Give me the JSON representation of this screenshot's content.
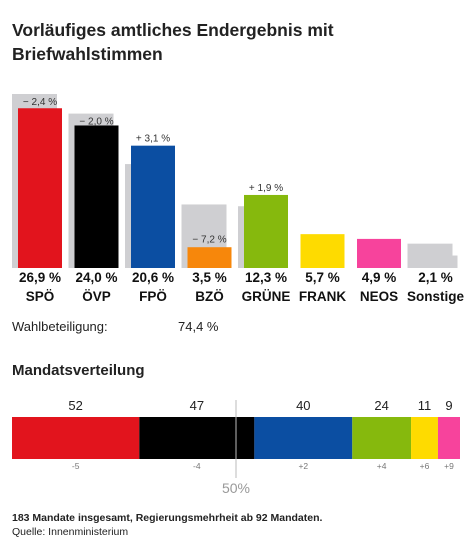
{
  "title": "Vorläufiges amtliches Endergebnis mit Briefwahlstimmen",
  "turnout": {
    "label": "Wahlbeteiligung:",
    "value": "74,4 %"
  },
  "seats_title": "Mandatsverteilung",
  "half_label": "50%",
  "footnote": "183 Mandate insgesamt, Regierungsmehrheit ab 92 Mandaten.",
  "source": "Quelle: Innenministerium",
  "chart_data": [
    {
      "type": "bar",
      "categories": [
        "SPÖ",
        "ÖVP",
        "FPÖ",
        "BZÖ",
        "GRÜNE",
        "FRANK",
        "NEOS",
        "Sonstige"
      ],
      "value_labels": [
        "26,9 %",
        "24,0 %",
        "20,6 %",
        "3,5 %",
        "12,3 %",
        "5,7 %",
        "4,9 %",
        "2,1 %"
      ],
      "change_labels": [
        "− 2,4 %",
        "− 2,0 %",
        "+ 3,1 %",
        "− 7,2 %",
        "+ 1,9 %",
        "",
        "",
        ""
      ],
      "series": [
        {
          "values": [
            26.9,
            24.0,
            20.6,
            3.5,
            12.3,
            5.7,
            4.9,
            2.1
          ]
        },
        {
          "values": [
            29.3,
            26.0,
            17.5,
            10.7,
            10.4,
            null,
            null,
            4.1
          ]
        }
      ],
      "colors": [
        "#e2141d",
        "#000000",
        "#0b4ea2",
        "#f7870b",
        "#86b90d",
        "#fedb00",
        "#f7439c",
        "#cfcfd2"
      ],
      "previous_color": "#cfcfd2",
      "ylim": [
        0,
        30
      ]
    },
    {
      "type": "bar",
      "orientation": "stacked-horizontal",
      "categories": [
        "SPÖ",
        "ÖVP",
        "FPÖ",
        "GRÜNE",
        "FRANK",
        "NEOS"
      ],
      "values": [
        52,
        47,
        40,
        24,
        11,
        9
      ],
      "changes": [
        "-5",
        "-4",
        "+2",
        "+4",
        "+6",
        "+9"
      ],
      "colors": [
        "#e2141d",
        "#000000",
        "#0b4ea2",
        "#86b90d",
        "#fedb00",
        "#f7439c"
      ],
      "total": 183,
      "majority": 92
    }
  ]
}
